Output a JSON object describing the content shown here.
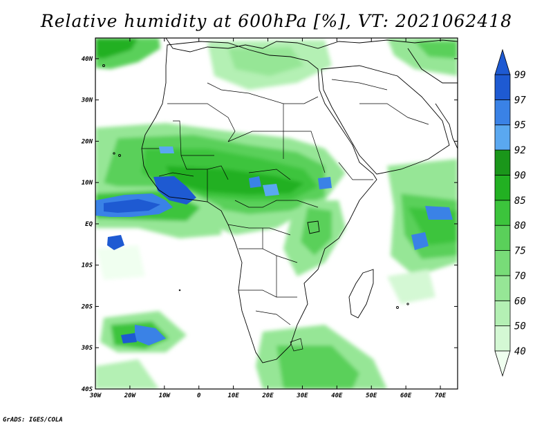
{
  "title": "Relative humidity at 600hPa [%], VT: 2021062418",
  "credit": "GrADS: IGES/COLA",
  "map": {
    "lon_range": [
      -30,
      75
    ],
    "lat_range": [
      -40,
      45
    ],
    "lon_ticks": [
      "30W",
      "20W",
      "10W",
      "0",
      "10E",
      "20E",
      "30E",
      "40E",
      "50E",
      "60E",
      "70E"
    ],
    "lat_ticks": [
      "40N",
      "30N",
      "20N",
      "10N",
      "EQ",
      "10S",
      "20S",
      "30S",
      "40S"
    ]
  },
  "colorbar": {
    "labels": [
      "40",
      "50",
      "60",
      "70",
      "75",
      "80",
      "85",
      "90",
      "92",
      "95",
      "97",
      "99"
    ],
    "colors": [
      "#f0fff0",
      "#d4f8d4",
      "#b4f0b4",
      "#96e696",
      "#78dc78",
      "#5ad05a",
      "#3cc43c",
      "#22b022",
      "#1a961a",
      "#5aa8f0",
      "#3a82e6",
      "#1e5ad2"
    ]
  }
}
